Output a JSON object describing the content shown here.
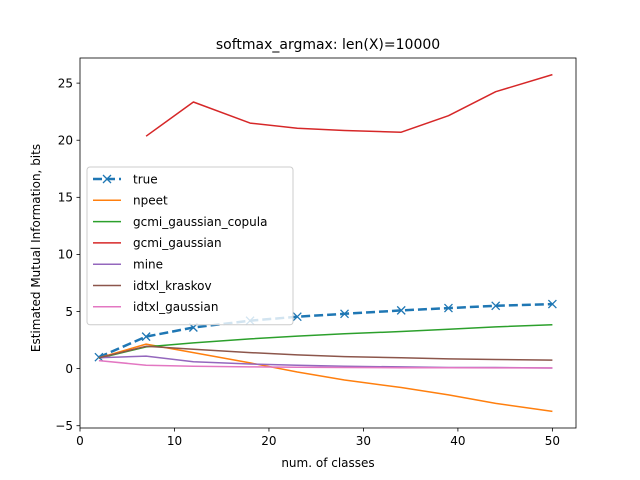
{
  "chart_data": {
    "type": "line",
    "title": "softmax_argmax: len(X)=10000",
    "xlabel": "num. of classes",
    "ylabel": "Estimated Mutual Information, bits",
    "xlim": [
      0,
      52.5
    ],
    "ylim": [
      -5.2,
      27.2
    ],
    "xticks": [
      0,
      10,
      20,
      30,
      40,
      50
    ],
    "yticks": [
      -5,
      0,
      5,
      10,
      15,
      20,
      25
    ],
    "grid": false,
    "legend_position": "center-left",
    "series": [
      {
        "name": "true",
        "color": "#1f77b4",
        "style": "dashed-x",
        "x": [
          2,
          7,
          12,
          18,
          23,
          28,
          34,
          39,
          44,
          50
        ],
        "y": [
          1.0,
          2.8,
          3.6,
          4.2,
          4.55,
          4.8,
          5.1,
          5.3,
          5.5,
          5.65
        ]
      },
      {
        "name": "npeet",
        "color": "#ff7f0e",
        "style": "solid",
        "x": [
          2,
          7,
          12,
          18,
          23,
          28,
          34,
          39,
          44,
          50
        ],
        "y": [
          0.95,
          2.15,
          1.4,
          0.5,
          -0.3,
          -1.0,
          -1.65,
          -2.3,
          -3.05,
          -3.75
        ]
      },
      {
        "name": "gcmi_gaussian_copula",
        "color": "#2ca02c",
        "style": "solid",
        "x": [
          2,
          7,
          12,
          18,
          23,
          28,
          34,
          39,
          44,
          50
        ],
        "y": [
          0.9,
          1.9,
          2.25,
          2.6,
          2.85,
          3.05,
          3.25,
          3.45,
          3.65,
          3.85
        ]
      },
      {
        "name": "gcmi_gaussian",
        "color": "#d62728",
        "style": "solid",
        "x": [
          7,
          12,
          18,
          23,
          28,
          34,
          39,
          44,
          50
        ],
        "y": [
          20.35,
          23.35,
          21.5,
          21.05,
          20.85,
          20.7,
          22.15,
          24.25,
          25.75
        ]
      },
      {
        "name": "mine",
        "color": "#9467bd",
        "style": "solid",
        "x": [
          2,
          7,
          12,
          18,
          23,
          28,
          34,
          39,
          44,
          50
        ],
        "y": [
          0.95,
          1.1,
          0.6,
          0.4,
          0.3,
          0.2,
          0.15,
          0.1,
          0.1,
          0.05
        ]
      },
      {
        "name": "idtxl_kraskov",
        "color": "#8c564b",
        "style": "solid",
        "x": [
          2,
          7,
          12,
          18,
          23,
          28,
          34,
          39,
          44,
          50
        ],
        "y": [
          0.95,
          1.95,
          1.7,
          1.4,
          1.2,
          1.05,
          0.95,
          0.85,
          0.8,
          0.75
        ]
      },
      {
        "name": "idtxl_gaussian",
        "color": "#e377c2",
        "style": "solid",
        "x": [
          2,
          7,
          12,
          18,
          23,
          28,
          34,
          39,
          44,
          50
        ],
        "y": [
          0.7,
          0.3,
          0.2,
          0.15,
          0.12,
          0.1,
          0.08,
          0.07,
          0.06,
          0.05
        ]
      }
    ]
  }
}
